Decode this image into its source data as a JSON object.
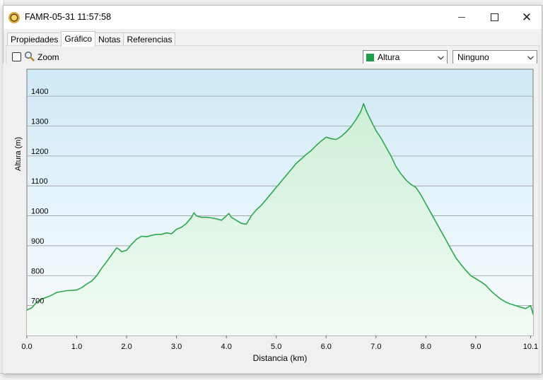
{
  "window": {
    "title": "FAMR-05-31 11:57:58",
    "icons": {
      "app": "compass-seal-icon",
      "minimize": "minimize-icon",
      "maximize": "maximize-icon",
      "close": "close-icon"
    }
  },
  "tabs": [
    {
      "label": "Propiedades",
      "active": false
    },
    {
      "label": "Gráfico",
      "active": true
    },
    {
      "label": "Notas",
      "active": false
    },
    {
      "label": "Referencias",
      "active": false
    }
  ],
  "toolbar": {
    "zoom_label": "Zoom",
    "zoom_checked": false,
    "series_select": {
      "value": "Altura",
      "color": "#1f9f4a"
    },
    "second_select": {
      "value": "Ninguno"
    }
  },
  "chart_data": {
    "type": "area",
    "xlabel": "Distancia  (km)",
    "ylabel": "Altura (m)",
    "xlim": [
      0,
      10.15
    ],
    "ylim": [
      600,
      1490
    ],
    "x_ticks": [
      "0.0",
      "1.0",
      "2.0",
      "3.0",
      "4.0",
      "5.0",
      "6.0",
      "7.0",
      "8.0",
      "9.0",
      "10.1"
    ],
    "y_ticks": [
      "700",
      "800",
      "900",
      "1000",
      "1100",
      "1200",
      "1300",
      "1400"
    ],
    "grid": true,
    "line_color": "#2aa84e",
    "series": [
      {
        "x": [
          0.0,
          0.1,
          0.2,
          0.3,
          0.4,
          0.5,
          0.6,
          0.8,
          1.0,
          1.1,
          1.2,
          1.3,
          1.4,
          1.5,
          1.6,
          1.7,
          1.8,
          1.85,
          1.9,
          2.0,
          2.1,
          2.2,
          2.3,
          2.4,
          2.5,
          2.6,
          2.7,
          2.8,
          2.9,
          3.0,
          3.1,
          3.2,
          3.3,
          3.35,
          3.4,
          3.5,
          3.6,
          3.7,
          3.8,
          3.9,
          4.0,
          4.05,
          4.1,
          4.2,
          4.3,
          4.4,
          4.5,
          4.6,
          4.7,
          4.8,
          4.9,
          5.0,
          5.1,
          5.2,
          5.3,
          5.4,
          5.5,
          5.6,
          5.7,
          5.8,
          5.9,
          6.0,
          6.1,
          6.2,
          6.3,
          6.4,
          6.5,
          6.6,
          6.7,
          6.75,
          6.8,
          6.9,
          7.0,
          7.1,
          7.2,
          7.3,
          7.4,
          7.5,
          7.6,
          7.7,
          7.8,
          7.9,
          8.0,
          8.1,
          8.2,
          8.3,
          8.4,
          8.5,
          8.6,
          8.7,
          8.8,
          8.9,
          9.0,
          9.1,
          9.2,
          9.3,
          9.4,
          9.5,
          9.6,
          9.7,
          9.8,
          9.9,
          10.0,
          10.1,
          10.15
        ],
        "y": [
          685,
          693,
          712,
          722,
          728,
          735,
          744,
          750,
          752,
          760,
          772,
          782,
          800,
          825,
          847,
          870,
          893,
          888,
          880,
          885,
          905,
          922,
          932,
          930,
          935,
          938,
          938,
          943,
          940,
          955,
          962,
          975,
          995,
          1010,
          1000,
          995,
          995,
          993,
          990,
          985,
          1000,
          1008,
          995,
          985,
          975,
          972,
          1000,
          1020,
          1035,
          1055,
          1075,
          1095,
          1115,
          1135,
          1155,
          1175,
          1190,
          1205,
          1218,
          1235,
          1250,
          1263,
          1258,
          1255,
          1265,
          1280,
          1298,
          1322,
          1350,
          1375,
          1353,
          1318,
          1285,
          1260,
          1230,
          1200,
          1165,
          1140,
          1120,
          1105,
          1095,
          1070,
          1040,
          1010,
          980,
          950,
          920,
          890,
          860,
          838,
          818,
          800,
          790,
          780,
          768,
          750,
          735,
          722,
          712,
          705,
          700,
          695,
          690,
          700,
          670
        ]
      }
    ]
  }
}
